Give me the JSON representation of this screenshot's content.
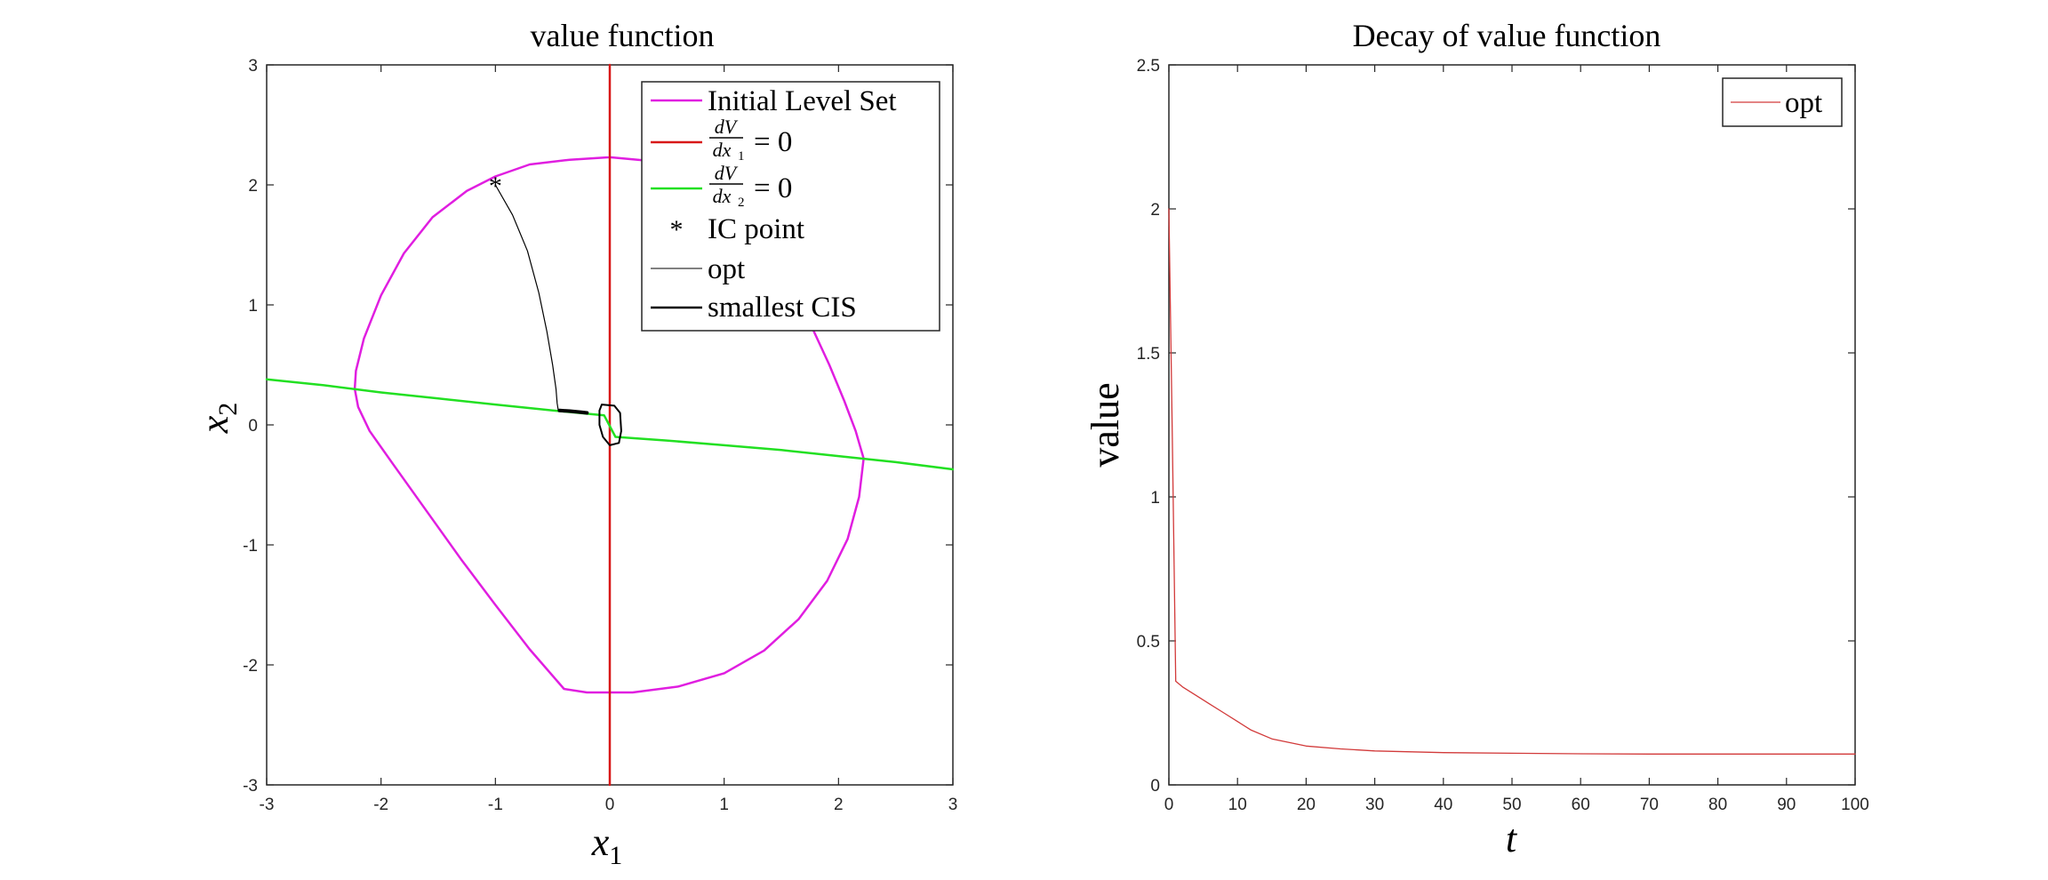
{
  "figure": {
    "panels": [
      {
        "title": "value function",
        "xlabel_main": "x",
        "xlabel_sub": "1",
        "ylabel_main": "x",
        "ylabel_sub": "2",
        "legend": {
          "initial": "Initial Level Set",
          "dvdx1_num": "dV",
          "dvdx1_den": "dx",
          "dvdx1_den_sub": "1",
          "dvdx1_rhs": "= 0",
          "dvdx2_num": "dV",
          "dvdx2_den": "dx",
          "dvdx2_den_sub": "2",
          "dvdx2_rhs": "= 0",
          "ic": "IC point",
          "opt": "opt",
          "cis": "smallest CIS"
        }
      },
      {
        "title": "Decay of value function",
        "xlabel": "t",
        "ylabel": "value",
        "legend": {
          "opt": "opt"
        }
      }
    ]
  },
  "colors": {
    "magenta": "#e01ee0",
    "red": "#d81818",
    "green": "#22e022",
    "black": "#000000",
    "decay": "#d23a3a",
    "axis": "#262626"
  },
  "chart_data": [
    {
      "type": "line",
      "title": "value function",
      "xlabel": "x_1",
      "ylabel": "x_2",
      "xlim": [
        -3,
        3
      ],
      "ylim": [
        -3,
        3
      ],
      "xticks": [
        -3,
        -2,
        -1,
        0,
        1,
        2,
        3
      ],
      "yticks": [
        -3,
        -2,
        -1,
        0,
        1,
        2,
        3
      ],
      "legend_position": "top-right",
      "grid": false,
      "series": [
        {
          "name": "Initial Level Set",
          "color": "#e01ee0",
          "x": [
            0,
            0.35,
            0.7,
            1.0,
            1.3,
            1.55,
            1.75,
            1.92,
            2.05,
            2.15,
            2.22,
            2.18,
            2.08,
            1.9,
            1.65,
            1.35,
            1.0,
            0.6,
            0.2,
            0,
            -0.2,
            -0.4,
            -0.7,
            -1.0,
            -1.3,
            -1.6,
            -1.9,
            -2.1,
            -2.2,
            -2.23,
            -2.22,
            -2.15,
            -2.0,
            -1.8,
            -1.55,
            -1.25,
            -1.0,
            -0.7,
            -0.35,
            0
          ],
          "y": [
            2.23,
            2.2,
            2.07,
            1.87,
            1.55,
            1.2,
            0.85,
            0.5,
            0.2,
            -0.05,
            -0.28,
            -0.6,
            -0.95,
            -1.3,
            -1.62,
            -1.88,
            -2.07,
            -2.18,
            -2.23,
            -2.23,
            -2.23,
            -2.2,
            -1.87,
            -1.5,
            -1.12,
            -0.72,
            -0.32,
            -0.05,
            0.15,
            0.3,
            0.45,
            0.72,
            1.08,
            1.43,
            1.73,
            1.95,
            2.07,
            2.17,
            2.21,
            2.23
          ]
        },
        {
          "name": "dV/dx1 = 0",
          "color": "#d81818",
          "x": [
            0,
            0
          ],
          "y": [
            -3,
            3
          ]
        },
        {
          "name": "dV/dx2 = 0",
          "color": "#22e022",
          "x": [
            -3,
            -2.5,
            -2.0,
            -1.5,
            -1.0,
            -0.5,
            -0.05,
            0.05,
            0.5,
            1.0,
            1.5,
            2.0,
            2.5,
            3.0
          ],
          "y": [
            0.38,
            0.33,
            0.27,
            0.22,
            0.17,
            0.12,
            0.08,
            -0.1,
            -0.13,
            -0.17,
            -0.21,
            -0.26,
            -0.31,
            -0.37
          ]
        },
        {
          "name": "IC point",
          "color": "#000000",
          "marker": "*",
          "x": [
            -1
          ],
          "y": [
            2
          ]
        },
        {
          "name": "opt",
          "color": "#000000",
          "x": [
            -1.0,
            -0.85,
            -0.72,
            -0.62,
            -0.55,
            -0.5,
            -0.47,
            -0.46,
            -0.45
          ],
          "y": [
            2.0,
            1.75,
            1.45,
            1.1,
            0.78,
            0.5,
            0.3,
            0.18,
            0.12
          ]
        },
        {
          "name": "smallest CIS",
          "color": "#000000",
          "x": [
            -0.44,
            -0.35,
            -0.25,
            -0.2
          ],
          "y": [
            0.12,
            0.115,
            0.105,
            0.1
          ]
        },
        {
          "name": "",
          "color": "#000000",
          "closed": true,
          "x": [
            -0.07,
            0.04,
            0.09,
            0.1,
            0.08,
            0.0,
            -0.06,
            -0.09,
            -0.09
          ],
          "y": [
            0.17,
            0.16,
            0.1,
            -0.05,
            -0.15,
            -0.17,
            -0.1,
            0.0,
            0.12
          ]
        }
      ]
    },
    {
      "type": "line",
      "title": "Decay of value function",
      "xlabel": "t",
      "ylabel": "value",
      "xlim": [
        0,
        100
      ],
      "ylim": [
        0,
        2.5
      ],
      "xticks": [
        0,
        10,
        20,
        30,
        40,
        50,
        60,
        70,
        80,
        90,
        100
      ],
      "yticks": [
        0,
        0.5,
        1,
        1.5,
        2,
        2.5
      ],
      "legend_position": "top-right",
      "grid": false,
      "series": [
        {
          "name": "opt",
          "color": "#d23a3a",
          "x": [
            0,
            0.5,
            1,
            2,
            4,
            6,
            8,
            10,
            12,
            15,
            20,
            25,
            30,
            40,
            50,
            60,
            70,
            80,
            90,
            100
          ],
          "y": [
            2.0,
            1.2,
            0.36,
            0.34,
            0.31,
            0.28,
            0.25,
            0.22,
            0.19,
            0.16,
            0.135,
            0.125,
            0.118,
            0.112,
            0.11,
            0.108,
            0.107,
            0.107,
            0.107,
            0.107
          ]
        }
      ]
    }
  ]
}
